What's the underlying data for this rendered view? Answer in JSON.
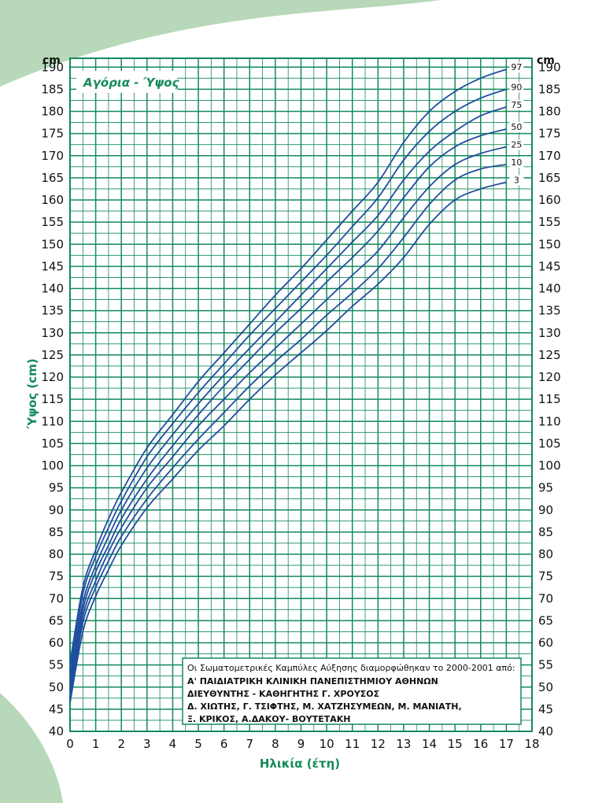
{
  "chart_data": {
    "type": "line",
    "title": "Αγόρια - Ύψος",
    "xlabel": "Ηλικία (έτη)",
    "ylabel": "Ύψος (cm)",
    "y_unit": "cm",
    "xlim": [
      0,
      18
    ],
    "ylim": [
      40,
      192
    ],
    "x_ticks": [
      0,
      1,
      2,
      3,
      4,
      5,
      6,
      7,
      8,
      9,
      10,
      11,
      12,
      13,
      14,
      15,
      16,
      17,
      18
    ],
    "y_ticks": [
      40,
      45,
      50,
      55,
      60,
      65,
      70,
      75,
      80,
      85,
      90,
      95,
      100,
      105,
      110,
      115,
      120,
      125,
      130,
      135,
      140,
      145,
      150,
      155,
      160,
      165,
      170,
      175,
      180,
      185,
      190
    ],
    "grid": true,
    "legend": "right end labels",
    "series": [
      {
        "name": "97",
        "x": [
          0,
          0.5,
          1,
          1.5,
          2,
          3,
          4,
          5,
          6,
          7,
          8,
          9,
          10,
          11,
          12,
          13,
          14,
          15,
          16,
          17
        ],
        "y": [
          55.5,
          72.5,
          81,
          88,
          94,
          104,
          111.5,
          119,
          125.5,
          132,
          138.5,
          144.5,
          151,
          157.5,
          164,
          173,
          180,
          184.5,
          187.5,
          189.5
        ]
      },
      {
        "name": "90",
        "x": [
          0,
          0.5,
          1,
          1.5,
          2,
          3,
          4,
          5,
          6,
          7,
          8,
          9,
          10,
          11,
          12,
          13,
          14,
          15,
          16,
          17
        ],
        "y": [
          53.5,
          71,
          79.5,
          86,
          92,
          102,
          109.5,
          116.5,
          123,
          129.5,
          135.5,
          141.5,
          147.5,
          154,
          160.5,
          169,
          175.5,
          180,
          183,
          185
        ]
      },
      {
        "name": "75",
        "x": [
          0,
          0.5,
          1,
          1.5,
          2,
          3,
          4,
          5,
          6,
          7,
          8,
          9,
          10,
          11,
          12,
          13,
          14,
          15,
          16,
          17
        ],
        "y": [
          52,
          69,
          77.5,
          84,
          90,
          99.5,
          107,
          114,
          120.5,
          126.5,
          132.5,
          138.5,
          144.5,
          150.5,
          156.5,
          164.5,
          171,
          175.5,
          179,
          181
        ]
      },
      {
        "name": "50",
        "x": [
          0,
          0.5,
          1,
          1.5,
          2,
          3,
          4,
          5,
          6,
          7,
          8,
          9,
          10,
          11,
          12,
          13,
          14,
          15,
          16,
          17
        ],
        "y": [
          50.5,
          67.5,
          76,
          82,
          88,
          97,
          104.5,
          111.5,
          118,
          124,
          130,
          135.5,
          141.5,
          147,
          153,
          160.5,
          167.5,
          172,
          174.5,
          176
        ]
      },
      {
        "name": "25",
        "x": [
          0,
          0.5,
          1,
          1.5,
          2,
          3,
          4,
          5,
          6,
          7,
          8,
          9,
          10,
          11,
          12,
          13,
          14,
          15,
          16,
          17
        ],
        "y": [
          49,
          66,
          74,
          80.5,
          86,
          95,
          102,
          109,
          115,
          121,
          126.5,
          132,
          137.5,
          143,
          148.5,
          156,
          163,
          168,
          170.5,
          172
        ]
      },
      {
        "name": "10",
        "x": [
          0,
          0.5,
          1,
          1.5,
          2,
          3,
          4,
          5,
          6,
          7,
          8,
          9,
          10,
          11,
          12,
          13,
          14,
          15,
          16,
          17
        ],
        "y": [
          47.5,
          64.5,
          72.5,
          78.5,
          84,
          92.5,
          99.5,
          106,
          112,
          118,
          123.5,
          128.5,
          134,
          139,
          144.5,
          151.5,
          159,
          164.5,
          167,
          168
        ]
      },
      {
        "name": "3",
        "x": [
          0,
          0.5,
          1,
          1.5,
          2,
          3,
          4,
          5,
          6,
          7,
          8,
          9,
          10,
          11,
          12,
          13,
          14,
          15,
          16,
          17
        ],
        "y": [
          46.5,
          62.5,
          70.5,
          76.5,
          82,
          90.5,
          97,
          103.5,
          109,
          115,
          120.5,
          125.5,
          130.5,
          136,
          141,
          147,
          154.5,
          160,
          162.5,
          164
        ]
      }
    ],
    "line_color": "#1f4e9e",
    "grid_color": "#138a5a",
    "text_color": "#138a5a"
  },
  "credits": {
    "line1": "Οι Σωματομετρικές Καμπύλες Αύξησης διαμορφώθηκαν το 2000-2001 από:",
    "line2": "Α' ΠΑΙΔΙΑΤΡΙΚΗ ΚΛΙΝΙΚΗ ΠΑΝΕΠΙΣΤΗΜΙΟΥ ΑΘΗΝΩΝ",
    "line3": "ΔΙΕΥΘΥΝΤΗΣ - ΚΑΘΗΓΗΤΗΣ Γ. ΧΡΟΥΣΟΣ",
    "line4": "Δ. ΧΙΩΤΗΣ, Γ. ΤΣΙΦΤΗΣ, Μ. ΧΑΤΖΗΣΥΜΕΩΝ, Μ. ΜΑΝΙΑΤΗ,",
    "line5": "Ξ. ΚΡΙΚΟΣ, Α.ΔΑΚΟΥ- ΒΟΥΤΕΤΑΚΗ"
  },
  "decor_color": "#b7d8b9"
}
